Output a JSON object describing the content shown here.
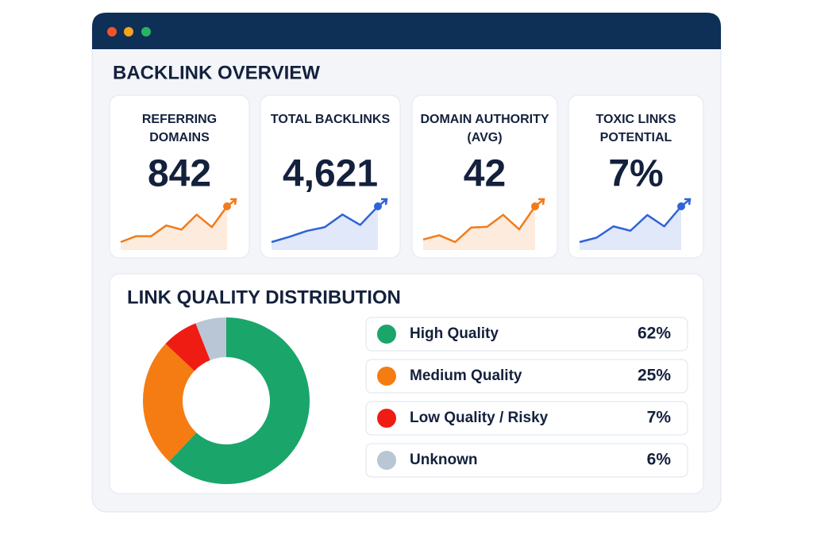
{
  "header": {
    "title": "BACKLINK OVERVIEW"
  },
  "cards": [
    {
      "label": [
        "REFERRING",
        "DOMAINS"
      ],
      "value": "842",
      "color": "#f07c1b",
      "trend": [
        0,
        7,
        7,
        20,
        15,
        33,
        18,
        43
      ]
    },
    {
      "label": [
        "TOTAL BACKLINKS"
      ],
      "value": "4,621",
      "color": "#2f63d8",
      "trend": [
        0,
        7,
        15,
        20,
        37,
        23,
        48
      ]
    },
    {
      "label": [
        "DOMAIN AUTHORITY",
        "(AVG)"
      ],
      "value": "42",
      "color": "#f07c1b",
      "trend": [
        8,
        13,
        5,
        22,
        23,
        37,
        20,
        47
      ]
    },
    {
      "label": [
        "TOXIC LINKS",
        "POTENTIAL"
      ],
      "value": "7%",
      "color": "#2f63d8",
      "trend": [
        0,
        5,
        18,
        13,
        31,
        18,
        41
      ]
    }
  ],
  "chart_data": {
    "type": "donut",
    "title": "LINK QUALITY DISTRIBUTION",
    "categories": [
      "High Quality",
      "Medium Quality",
      "Low Quality / Risky",
      "Unknown"
    ],
    "values": [
      62,
      25,
      7,
      6
    ],
    "value_labels": [
      "62%",
      "25%",
      "7%",
      "6%"
    ],
    "colors": [
      "#1aa56a",
      "#f57c12",
      "#ee1c12",
      "#b9c6d6"
    ]
  }
}
